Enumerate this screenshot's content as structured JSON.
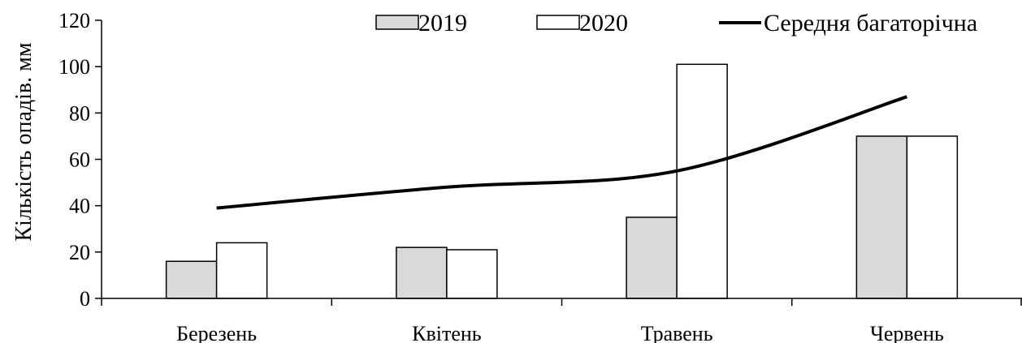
{
  "chart_data": {
    "type": "bar",
    "title": "",
    "xlabel": "",
    "ylabel": "Кількість опадів. мм",
    "ylim": [
      0,
      120
    ],
    "yticks": [
      0,
      20,
      40,
      60,
      80,
      100,
      120
    ],
    "categories": [
      "Березень",
      "Квітень",
      "Травень",
      "Червень"
    ],
    "series": [
      {
        "name": "2019",
        "type": "bar",
        "color": "#d9d9d9",
        "values": [
          16,
          22,
          35,
          70
        ]
      },
      {
        "name": "2020",
        "type": "bar",
        "color": "#ffffff",
        "values": [
          24,
          21,
          101,
          70
        ]
      },
      {
        "name": "Середня багаторічна",
        "type": "line",
        "color": "#000000",
        "values": [
          39,
          48,
          55,
          87
        ]
      }
    ],
    "grid": false,
    "legend": "top"
  }
}
